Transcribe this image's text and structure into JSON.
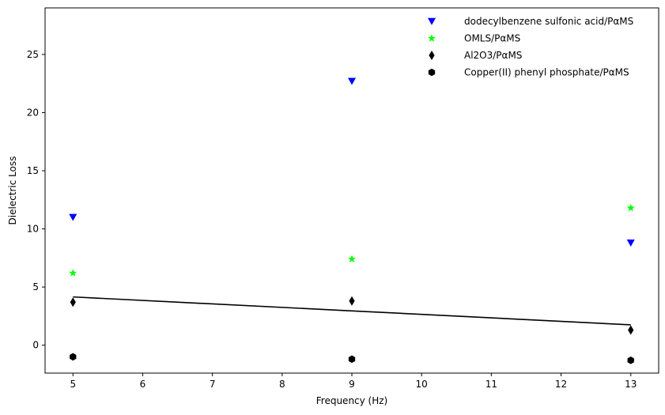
{
  "chart_data": {
    "type": "scatter",
    "title": "",
    "xlabel": "Frequency (Hz)",
    "ylabel": "Dielectric Loss",
    "xlim": [
      4.6,
      13.4
    ],
    "ylim": [
      -2.4,
      29.0
    ],
    "xticks": [
      5,
      6,
      7,
      8,
      9,
      10,
      11,
      12,
      13
    ],
    "yticks": [
      0,
      5,
      10,
      15,
      20,
      25
    ],
    "grid": false,
    "legend_position": "top-right",
    "series": [
      {
        "name": "dodecylbenzene sulfonic acid/PαMS",
        "marker": "triangle-down",
        "color": "#0000ff",
        "x": [
          5,
          9,
          13
        ],
        "y": [
          11.0,
          22.7,
          8.8
        ]
      },
      {
        "name": "OMLS/PαMS",
        "marker": "star",
        "color": "#00ff00",
        "x": [
          5,
          9,
          13
        ],
        "y": [
          6.2,
          7.4,
          11.8
        ]
      },
      {
        "name": "Al2O3/PαMS",
        "marker": "thin-diamond",
        "color": "#000000",
        "x": [
          5,
          9,
          13
        ],
        "y": [
          3.7,
          3.8,
          1.3
        ]
      },
      {
        "name": "Copper(II) phenyl phosphate/PαMS",
        "marker": "hexagon",
        "color": "#000000",
        "x": [
          5,
          9,
          13
        ],
        "y": [
          -1.0,
          -1.2,
          -1.3
        ]
      }
    ],
    "trend_line": {
      "color": "#000000",
      "x": [
        5,
        9,
        13
      ],
      "y": [
        4.15,
        2.95,
        1.75
      ]
    }
  }
}
